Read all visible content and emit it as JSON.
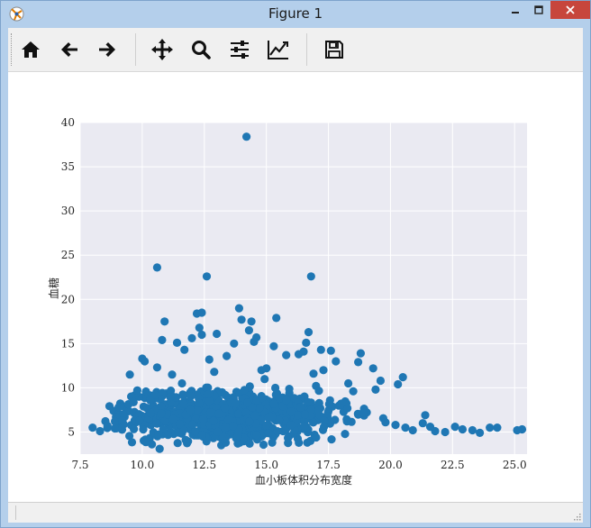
{
  "window": {
    "title": "Figure 1",
    "icon": "matplotlib-icon"
  },
  "window_controls": [
    "minimize-icon",
    "maximize-icon",
    "close-icon"
  ],
  "toolbar": {
    "buttons": [
      {
        "name": "home",
        "icon": "home-icon"
      },
      {
        "name": "back",
        "icon": "arrow-left-icon"
      },
      {
        "name": "forward",
        "icon": "arrow-right-icon"
      },
      {
        "name": "pan",
        "icon": "move-icon"
      },
      {
        "name": "zoom",
        "icon": "search-icon"
      },
      {
        "name": "configure-subplots",
        "icon": "sliders-icon"
      },
      {
        "name": "edit-axis",
        "icon": "line-chart-icon"
      },
      {
        "name": "save",
        "icon": "floppy-disk-icon"
      }
    ]
  },
  "colors": {
    "plot_bg": "#eaeaf2",
    "marker": "#1f77b4",
    "grid": "#ffffff"
  },
  "chart_data": {
    "type": "scatter",
    "title": "",
    "xlabel": "血小板体积分布宽度",
    "ylabel": "血糖",
    "xlim": [
      7.5,
      25.5
    ],
    "ylim": [
      2.5,
      40.0
    ],
    "xticks": [
      7.5,
      10.0,
      12.5,
      15.0,
      17.5,
      20.0,
      22.5,
      25.0
    ],
    "xtick_labels": [
      "7.5",
      "10.0",
      "12.5",
      "15.0",
      "17.5",
      "20.0",
      "22.5",
      "25.0"
    ],
    "yticks": [
      5,
      10,
      15,
      20,
      25,
      30,
      35,
      40
    ],
    "ytick_labels": [
      "5",
      "10",
      "15",
      "20",
      "25",
      "30",
      "35",
      "40"
    ],
    "grid": true,
    "series": [
      {
        "marker": "circle",
        "x": [
          14.2,
          10.6,
          12.6,
          16.8,
          13.9,
          12.4,
          12.2,
          14.0,
          15.4,
          14.4,
          10.9,
          12.3,
          14.3,
          16.7,
          12.4,
          13.0,
          14.6,
          16.6,
          12.0,
          14.5,
          10.8,
          11.4,
          13.7,
          15.3,
          17.6,
          17.2,
          16.5,
          18.8,
          11.7,
          13.4,
          15.8,
          16.3,
          18.7,
          12.7,
          17.8,
          10.0,
          10.1,
          20.5,
          19.6,
          18.3,
          10.6,
          17.3,
          19.3,
          11.2,
          9.5,
          15.0,
          16.9,
          12.9,
          14.8,
          20.3,
          19.4,
          18.5,
          17.0,
          9.8,
          21.4,
          11.6,
          8.0,
          25.3,
          25.1,
          24.3,
          24.0,
          23.6,
          23.3,
          22.9,
          22.6,
          22.2,
          21.8,
          21.6,
          21.3,
          20.9,
          20.6,
          20.2,
          19.8,
          18.9,
          8.3,
          8.6,
          8.9,
          9.2,
          10.7
        ],
        "y": [
          38.4,
          23.6,
          22.6,
          22.6,
          19.0,
          18.5,
          18.4,
          17.7,
          17.9,
          17.5,
          17.5,
          16.8,
          16.5,
          16.3,
          16.0,
          16.1,
          15.7,
          15.1,
          15.6,
          15.2,
          15.4,
          15.1,
          15.0,
          14.7,
          14.2,
          14.3,
          14.1,
          13.9,
          14.3,
          13.6,
          13.7,
          13.8,
          12.9,
          13.2,
          13.0,
          13.3,
          13.0,
          11.2,
          10.8,
          10.5,
          12.3,
          12.0,
          12.2,
          11.5,
          11.5,
          12.2,
          11.6,
          11.8,
          12.0,
          10.4,
          9.8,
          9.6,
          10.2,
          9.7,
          6.9,
          10.5,
          5.5,
          5.3,
          5.2,
          5.5,
          5.5,
          4.9,
          5.2,
          5.3,
          5.6,
          5.0,
          5.1,
          5.6,
          6.0,
          5.2,
          5.5,
          5.8,
          6.1,
          7.2,
          5.1,
          5.7,
          6.2,
          6.3,
          3.1
        ]
      }
    ],
    "dense_cluster": {
      "x_range": [
        8.5,
        21.5
      ],
      "y_range": [
        3.5,
        12.0
      ],
      "x_center": 13.6,
      "y_center": 6.2
    }
  }
}
